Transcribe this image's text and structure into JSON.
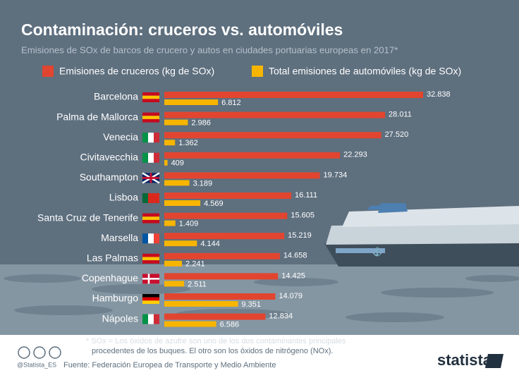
{
  "chart_data": {
    "type": "bar",
    "title": "Contaminación: cruceros vs. automóviles",
    "subtitle": "Emisiones de SOx de barcos de crucero y autos en ciudades portuarias europeas en 2017*",
    "categories": [
      "Barcelona",
      "Palma de Mallorca",
      "Venecia",
      "Civitavecchia",
      "Southampton",
      "Lisboa",
      "Santa Cruz de Tenerife",
      "Marsella",
      "Las Palmas",
      "Copenhague",
      "Hamburgo",
      "Nápoles"
    ],
    "series": [
      {
        "name": "Emisiones de cruceros (kg de SOx)",
        "color": "#e2452f",
        "values": [
          32838,
          28011,
          27520,
          22293,
          19734,
          16111,
          15605,
          15219,
          14658,
          14425,
          14079,
          12834
        ],
        "value_labels": [
          "32.838",
          "28.011",
          "27.520",
          "22.293",
          "19.734",
          "16.111",
          "15.605",
          "15.219",
          "14.658",
          "14.425",
          "14.079",
          "12.834"
        ]
      },
      {
        "name": "Total emisiones de automóviles (kg de SOx)",
        "color": "#f7b500",
        "values": [
          6812,
          2986,
          1362,
          409,
          3189,
          4569,
          1409,
          4144,
          2241,
          2511,
          9351,
          6586
        ],
        "value_labels": [
          "6.812",
          "2.986",
          "1.362",
          "409",
          "3.189",
          "4.569",
          "1.409",
          "4.144",
          "2.241",
          "2.511",
          "9.351",
          "6.586"
        ]
      }
    ],
    "footnote": [
      "* SOx = Los óxidos de azufre son uno de los dos contaminantes principales",
      "procedentes de los buques. El otro son los óxidos de nitrógeno (NOx)."
    ],
    "source": "Fuente: Federación Europea de Transporte y Medio Ambiente",
    "credit": "@Statista_ES",
    "logo": "statista"
  }
}
